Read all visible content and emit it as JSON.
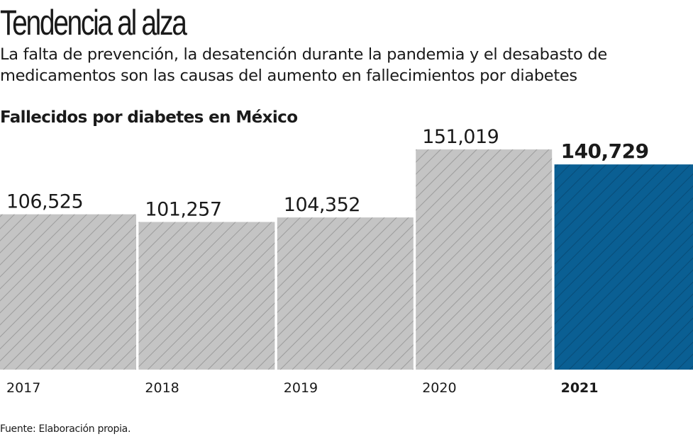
{
  "title": "Tendencia al alza",
  "subtitle": "La falta de prevención, la desatención durante la pandemia y el desabasto de medicamentos son las causas del aumento en fallecimientos por diabetes",
  "source": "Fuente: Elaboración propia.",
  "chart_data": {
    "type": "bar",
    "title": "Fallecidos por diabetes en México",
    "categories": [
      "2017",
      "2018",
      "2019",
      "2020",
      "2021"
    ],
    "values": [
      106525,
      101257,
      104352,
      151019,
      140729
    ],
    "value_labels": [
      "106,525",
      "101,257",
      "104,352",
      "151,019",
      "140,729"
    ],
    "highlight": "2021",
    "xlabel": "",
    "ylabel": "",
    "ylim": [
      0,
      253500
    ],
    "grid": false,
    "colors": {
      "default": "#c4c4c4",
      "default_hatch": "#9c9c9c",
      "highlight": "#0a5f93",
      "highlight_hatch": "#084c78"
    }
  }
}
